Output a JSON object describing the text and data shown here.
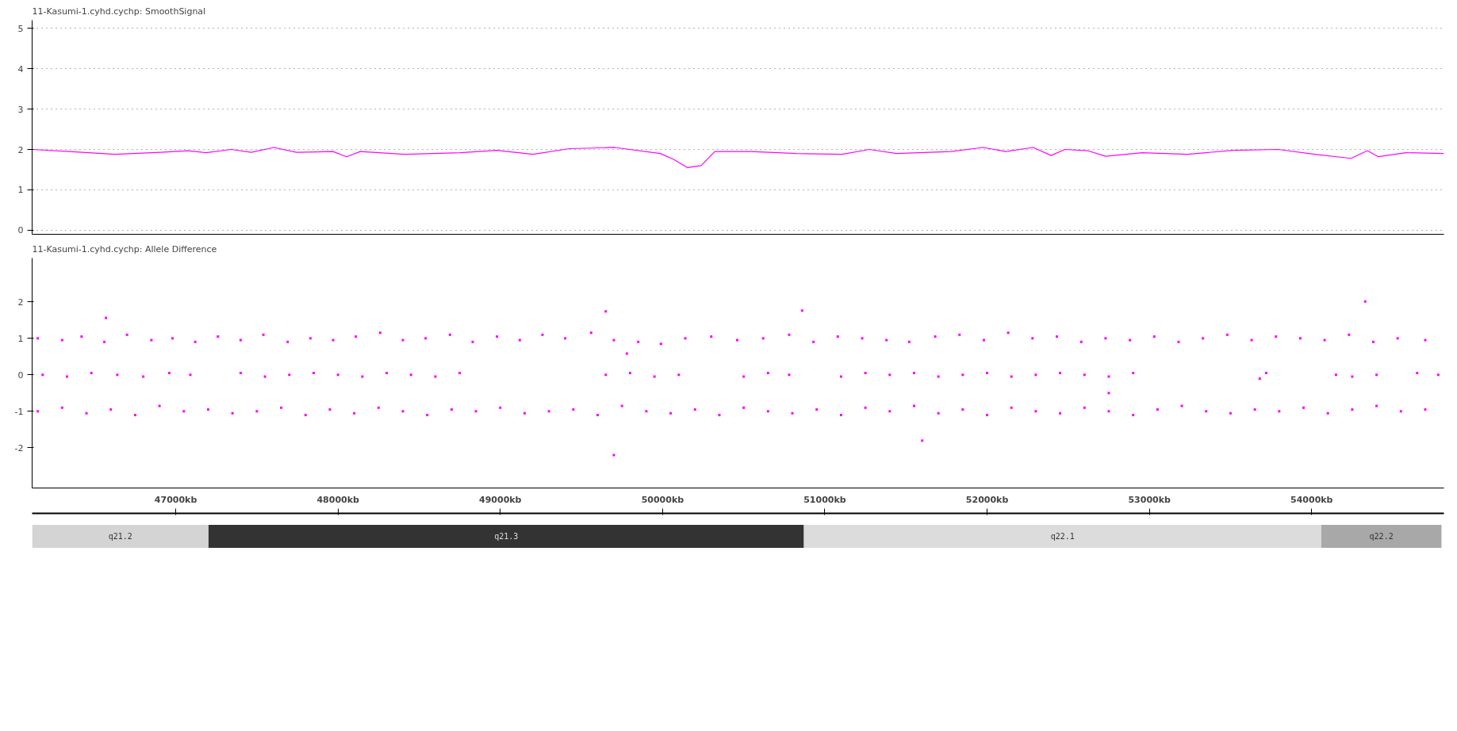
{
  "chart_data": [
    {
      "type": "line",
      "title": "11-Kasumi-1.cyhd.cychp: SmoothSignal",
      "color": "#ff00ff",
      "x": [
        46115,
        46345,
        46625,
        46905,
        47073,
        47185,
        47342,
        47465,
        47605,
        47745,
        47969,
        48053,
        48137,
        48417,
        48753,
        48978,
        49202,
        49426,
        49706,
        49986,
        50070,
        50154,
        50238,
        50322,
        50546,
        50826,
        51106,
        51274,
        51442,
        51778,
        51975,
        52115,
        52283,
        52395,
        52479,
        52619,
        52731,
        52955,
        53235,
        53515,
        53795,
        54019,
        54243,
        54344,
        54411,
        54580,
        54815
      ],
      "values": [
        2.0,
        1.95,
        1.88,
        1.93,
        1.97,
        1.92,
        2.0,
        1.93,
        2.05,
        1.93,
        1.95,
        1.82,
        1.95,
        1.88,
        1.92,
        1.98,
        1.88,
        2.02,
        2.05,
        1.9,
        1.75,
        1.55,
        1.6,
        1.95,
        1.95,
        1.9,
        1.88,
        2.0,
        1.9,
        1.95,
        2.05,
        1.95,
        2.05,
        1.85,
        2.0,
        1.97,
        1.83,
        1.92,
        1.88,
        1.98,
        2.0,
        1.88,
        1.78,
        1.97,
        1.82,
        1.92,
        1.9
      ],
      "xlim": [
        46115,
        54815
      ],
      "ylim": [
        -0.1,
        5.2
      ],
      "yticks": [
        0,
        1,
        2,
        3,
        4,
        5
      ],
      "grid": "y",
      "tick_labels": "y"
    },
    {
      "type": "scatter",
      "title": "11-Kasumi-1.cyhd.cychp: Allele Difference",
      "color": "#ff00ff",
      "marker": "square",
      "x": [
        46150,
        46300,
        46420,
        46560,
        46700,
        46850,
        46980,
        47120,
        47260,
        47400,
        47540,
        47690,
        47830,
        47970,
        48110,
        48260,
        48400,
        48540,
        48690,
        48830,
        48980,
        49120,
        49260,
        49400,
        49560,
        49700,
        49850,
        49990,
        50140,
        50300,
        50460,
        50620,
        50780,
        50930,
        51080,
        51230,
        51380,
        51520,
        51680,
        51830,
        51980,
        52130,
        52280,
        52430,
        52580,
        52730,
        52880,
        53030,
        53180,
        53330,
        53480,
        53630,
        53780,
        53930,
        54080,
        54230,
        54380,
        54530,
        54700,
        46180,
        46330,
        46480,
        46640,
        46800,
        46960,
        47090,
        47400,
        47550,
        47700,
        47850,
        48000,
        48150,
        48300,
        48450,
        48600,
        48750,
        49650,
        49800,
        49950,
        50100,
        50500,
        50650,
        50780,
        51100,
        51250,
        51400,
        51550,
        51700,
        51850,
        52000,
        52150,
        52300,
        52450,
        52600,
        52750,
        52900,
        53680,
        53720,
        54150,
        54250,
        54400,
        54650,
        54780,
        46150,
        46300,
        46450,
        46600,
        46750,
        46900,
        47050,
        47200,
        47350,
        47500,
        47650,
        47800,
        47950,
        48100,
        48250,
        48400,
        48550,
        48700,
        48850,
        49000,
        49150,
        49300,
        49450,
        49600,
        49750,
        49900,
        50050,
        50200,
        50350,
        50500,
        50650,
        50800,
        50950,
        51100,
        51250,
        51400,
        51550,
        51700,
        51850,
        52000,
        52150,
        52300,
        52450,
        52600,
        52750,
        52900,
        53050,
        53200,
        53350,
        53500,
        53650,
        53800,
        53950,
        54100,
        54250,
        54400,
        54550,
        54700,
        46570,
        49650,
        50860,
        54330,
        49700,
        51600,
        52750,
        49780
      ],
      "values": [
        1.0,
        0.95,
        1.05,
        0.9,
        1.1,
        0.95,
        1.0,
        0.9,
        1.05,
        0.95,
        1.1,
        0.9,
        1.0,
        0.95,
        1.05,
        1.15,
        0.95,
        1.0,
        1.1,
        0.9,
        1.05,
        0.95,
        1.1,
        1.0,
        1.15,
        0.95,
        0.9,
        0.85,
        1.0,
        1.05,
        0.95,
        1.0,
        1.1,
        0.9,
        1.05,
        1.0,
        0.95,
        0.9,
        1.05,
        1.1,
        0.95,
        1.15,
        1.0,
        1.05,
        0.9,
        1.0,
        0.95,
        1.05,
        0.9,
        1.0,
        1.1,
        0.95,
        1.05,
        1.0,
        0.95,
        1.1,
        0.9,
        1.0,
        0.95,
        0.0,
        -0.05,
        0.05,
        0.0,
        -0.05,
        0.05,
        0.0,
        0.05,
        -0.05,
        0.0,
        0.05,
        0.0,
        -0.05,
        0.05,
        0.0,
        -0.05,
        0.05,
        0.0,
        0.05,
        -0.05,
        0.0,
        -0.05,
        0.05,
        0.0,
        -0.05,
        0.05,
        0.0,
        0.05,
        -0.05,
        0.0,
        0.05,
        -0.05,
        0.0,
        0.05,
        0.0,
        -0.05,
        0.05,
        -0.1,
        0.05,
        0.0,
        -0.05,
        0.0,
        0.05,
        0.0,
        -1.0,
        -0.9,
        -1.05,
        -0.95,
        -1.1,
        -0.85,
        -1.0,
        -0.95,
        -1.05,
        -1.0,
        -0.9,
        -1.1,
        -0.95,
        -1.05,
        -0.9,
        -1.0,
        -1.1,
        -0.95,
        -1.0,
        -0.9,
        -1.05,
        -1.0,
        -0.95,
        -1.1,
        -0.85,
        -1.0,
        -1.05,
        -0.95,
        -1.1,
        -0.9,
        -1.0,
        -1.05,
        -0.95,
        -1.1,
        -0.9,
        -1.0,
        -0.85,
        -1.05,
        -0.95,
        -1.1,
        -0.9,
        -1.0,
        -1.05,
        -0.9,
        -1.0,
        -1.1,
        -0.95,
        -0.85,
        -1.0,
        -1.05,
        -0.95,
        -1.0,
        -0.9,
        -1.05,
        -0.95,
        -0.85,
        -1.0,
        -0.95,
        1.56,
        1.74,
        1.76,
        2.01,
        -2.2,
        -1.8,
        -0.5,
        0.58
      ],
      "xlim": [
        46115,
        54815
      ],
      "ylim": [
        -3.1,
        3.2
      ],
      "yticks": [
        -2,
        -1,
        0,
        1,
        2
      ],
      "tick_labels": "y"
    },
    {
      "type": "bar",
      "orientation": "horizontal",
      "categories": [
        null
      ],
      "series": [
        {
          "name": "q21.2",
          "color": "#d4d4d4",
          "base": [
            46115
          ],
          "values": [
            1087
          ]
        },
        {
          "name": "q21.3",
          "color": "#333333",
          "base": [
            47202
          ],
          "values": [
            3669
          ]
        },
        {
          "name": "q22.1",
          "color": "#dcdcdc",
          "base": [
            50871
          ],
          "values": [
            3188
          ]
        },
        {
          "name": "q22.2",
          "color": "#a8a8a8",
          "base": [
            54059
          ],
          "values": [
            741
          ]
        }
      ],
      "xlim": [
        46115,
        54815
      ],
      "xticks": [
        {
          "value": 47000,
          "label": "47000kb"
        },
        {
          "value": 48000,
          "label": "48000kb"
        },
        {
          "value": 49000,
          "label": "49000kb"
        },
        {
          "value": 50000,
          "label": "50000kb"
        },
        {
          "value": 51000,
          "label": "51000kb"
        },
        {
          "value": 52000,
          "label": "52000kb"
        },
        {
          "value": 53000,
          "label": "53000kb"
        },
        {
          "value": 54000,
          "label": "54000kb"
        }
      ],
      "tick_labels": "x"
    }
  ]
}
